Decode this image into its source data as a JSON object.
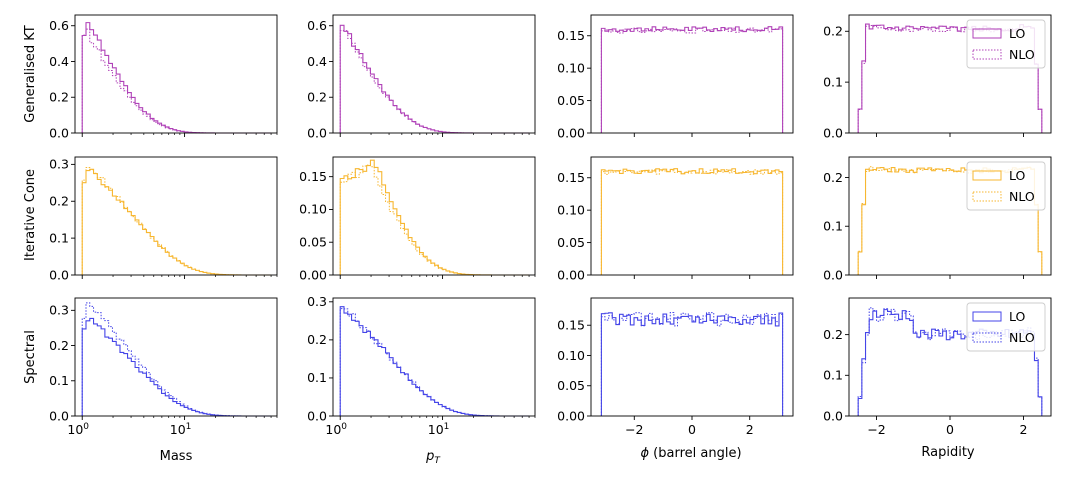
{
  "colors": {
    "gkt": "#b042b8",
    "icone": "#f7b731",
    "spectral": "#4545e8"
  },
  "row_labels": [
    "Generalised KT",
    "Iterative Cone",
    "Spectral"
  ],
  "legend": {
    "lo": "LO",
    "nlo": "NLO",
    "placement": "top-right"
  },
  "axis_labels": {
    "mass": "Mass",
    "pt_main": "p",
    "pt_sub": "T",
    "phi_greek": "ϕ",
    "phi_rest": " (barrel angle)",
    "rapidity": "Rapidity"
  },
  "chart_data": [
    {
      "type": "step-histogram",
      "row": 0,
      "col": 0,
      "variable": "mass",
      "xscale": "log",
      "xlim": [
        0.85,
        80
      ],
      "ylim": [
        0,
        0.66
      ],
      "yticks": [
        "0.0",
        "0.2",
        "0.4",
        "0.6"
      ],
      "yvals": [
        0,
        0.2,
        0.4,
        0.6
      ],
      "xticks": [],
      "color": "gkt",
      "legend": false,
      "lo": {
        "edges_start": 1.0,
        "edges_end": 30,
        "peak_x": 1.15,
        "peak_y": 0.63
      },
      "nlo": {
        "peak_x": 1.1,
        "peak_y": 0.58
      }
    },
    {
      "type": "step-histogram",
      "row": 0,
      "col": 1,
      "variable": "pt",
      "xscale": "log",
      "xlim": [
        0.85,
        80
      ],
      "ylim": [
        0,
        0.66
      ],
      "yticks": [
        "0.0",
        "0.2",
        "0.4",
        "0.6"
      ],
      "yvals": [
        0,
        0.2,
        0.4,
        0.6
      ],
      "xticks": [],
      "color": "gkt",
      "legend": false,
      "lo": {
        "edges_start": 1.0,
        "edges_end": 40,
        "peak_x": 1.05,
        "peak_y": 0.62
      },
      "nlo": {
        "peak_x": 1.05,
        "peak_y": 0.6
      }
    },
    {
      "type": "step-histogram",
      "row": 0,
      "col": 2,
      "variable": "phi",
      "xscale": "linear",
      "xlim": [
        -3.5,
        3.5
      ],
      "ylim": [
        0,
        0.182
      ],
      "yticks": [
        "0.00",
        "0.05",
        "0.10",
        "0.15"
      ],
      "yvals": [
        0,
        0.05,
        0.1,
        0.15
      ],
      "xticks": [],
      "color": "gkt",
      "legend": false,
      "lo": {
        "range": [
          -3.14,
          3.14
        ],
        "level": 0.16
      },
      "nlo": {
        "level": 0.158
      }
    },
    {
      "type": "step-histogram",
      "row": 0,
      "col": 3,
      "variable": "rapidity",
      "xscale": "linear",
      "xlim": [
        -2.75,
        2.75
      ],
      "ylim": [
        0,
        0.232
      ],
      "yticks": [
        "0.0",
        "0.1",
        "0.2"
      ],
      "yvals": [
        0,
        0.1,
        0.2
      ],
      "xticks": [],
      "color": "gkt",
      "legend": true,
      "lo": {
        "range": [
          -2.5,
          2.5
        ],
        "level": 0.205
      },
      "nlo": {
        "level": 0.203
      }
    },
    {
      "type": "step-histogram",
      "row": 1,
      "col": 0,
      "variable": "mass",
      "xscale": "log",
      "xlim": [
        0.85,
        80
      ],
      "ylim": [
        0,
        0.32
      ],
      "yticks": [
        "0.0",
        "0.1",
        "0.2",
        "0.3"
      ],
      "yvals": [
        0,
        0.1,
        0.2,
        0.3
      ],
      "xticks": [],
      "color": "icone",
      "legend": false,
      "lo": {
        "peak_x": 1.2,
        "peak_y": 0.29
      },
      "nlo": {
        "peak_x": 1.15,
        "peak_y": 0.3
      }
    },
    {
      "type": "step-histogram",
      "row": 1,
      "col": 1,
      "variable": "pt",
      "xscale": "log",
      "xlim": [
        0.85,
        80
      ],
      "ylim": [
        0,
        0.18
      ],
      "yticks": [
        "0.00",
        "0.05",
        "0.10",
        "0.15"
      ],
      "yvals": [
        0,
        0.05,
        0.1,
        0.15
      ],
      "xticks": [],
      "color": "icone",
      "legend": false,
      "lo": {
        "peak_x": 2.2,
        "peak_y": 0.172
      },
      "nlo": {
        "peak_x": 2.0,
        "peak_y": 0.168
      }
    },
    {
      "type": "step-histogram",
      "row": 1,
      "col": 2,
      "variable": "phi",
      "xscale": "linear",
      "xlim": [
        -3.5,
        3.5
      ],
      "ylim": [
        0,
        0.182
      ],
      "yticks": [
        "0.00",
        "0.05",
        "0.10",
        "0.15"
      ],
      "yvals": [
        0,
        0.05,
        0.1,
        0.15
      ],
      "xticks": [],
      "color": "icone",
      "legend": false,
      "lo": {
        "range": [
          -3.14,
          3.14
        ],
        "level": 0.16
      },
      "nlo": {
        "level": 0.159
      }
    },
    {
      "type": "step-histogram",
      "row": 1,
      "col": 3,
      "variable": "rapidity",
      "xscale": "linear",
      "xlim": [
        -2.75,
        2.75
      ],
      "ylim": [
        0,
        0.242
      ],
      "yticks": [
        "0.0",
        "0.1",
        "0.2"
      ],
      "yvals": [
        0,
        0.1,
        0.2
      ],
      "xticks": [],
      "color": "icone",
      "legend": true,
      "lo": {
        "range": [
          -2.5,
          2.5
        ],
        "level": 0.215
      },
      "nlo": {
        "level": 0.213
      }
    },
    {
      "type": "step-histogram",
      "row": 2,
      "col": 0,
      "variable": "mass",
      "xscale": "log",
      "xlim": [
        0.85,
        80
      ],
      "ylim": [
        0,
        0.335
      ],
      "yticks": [
        "0.0",
        "0.1",
        "0.2",
        "0.3"
      ],
      "yvals": [
        0,
        0.1,
        0.2,
        0.3
      ],
      "xticks": [
        "10^0",
        "10^1"
      ],
      "xtickvals": [
        1,
        10
      ],
      "color": "spectral",
      "legend": false,
      "lo": {
        "peak_x": 1.15,
        "peak_y": 0.28
      },
      "nlo": {
        "peak_x": 1.15,
        "peak_y": 0.32
      }
    },
    {
      "type": "step-histogram",
      "row": 2,
      "col": 1,
      "variable": "pt",
      "xscale": "log",
      "xlim": [
        0.85,
        80
      ],
      "ylim": [
        0,
        0.31
      ],
      "yticks": [
        "0.0",
        "0.1",
        "0.2",
        "0.3"
      ],
      "yvals": [
        0,
        0.1,
        0.2,
        0.3
      ],
      "xticks": [
        "10^0",
        "10^1"
      ],
      "xtickvals": [
        1,
        10
      ],
      "color": "spectral",
      "legend": false,
      "lo": {
        "peak_x": 1.05,
        "peak_y": 0.29
      },
      "nlo": {
        "peak_x": 1.05,
        "peak_y": 0.29
      }
    },
    {
      "type": "step-histogram",
      "row": 2,
      "col": 2,
      "variable": "phi",
      "xscale": "linear",
      "xlim": [
        -3.5,
        3.5
      ],
      "ylim": [
        0,
        0.195
      ],
      "yticks": [
        "0.00",
        "0.05",
        "0.10",
        "0.15"
      ],
      "yvals": [
        0,
        0.05,
        0.1,
        0.15
      ],
      "xticks": [
        "−2",
        "0",
        "2"
      ],
      "xtickvals": [
        -2,
        0,
        2
      ],
      "color": "spectral",
      "legend": false,
      "lo": {
        "range": [
          -3.14,
          3.14
        ],
        "level": 0.16
      },
      "nlo": {
        "level": 0.16
      }
    },
    {
      "type": "step-histogram",
      "row": 2,
      "col": 3,
      "variable": "rapidity",
      "xscale": "linear",
      "xlim": [
        -2.75,
        2.75
      ],
      "ylim": [
        0,
        0.29
      ],
      "yticks": [
        "0.0",
        "0.1",
        "0.2"
      ],
      "yvals": [
        0,
        0.1,
        0.2
      ],
      "xticks": [
        "−2",
        "0",
        "2"
      ],
      "xtickvals": [
        -2,
        0,
        2
      ],
      "color": "spectral",
      "legend": true,
      "lo": {
        "range": [
          -2.5,
          2.5
        ],
        "level": 0.2
      },
      "nlo": {
        "level": 0.2
      }
    }
  ]
}
